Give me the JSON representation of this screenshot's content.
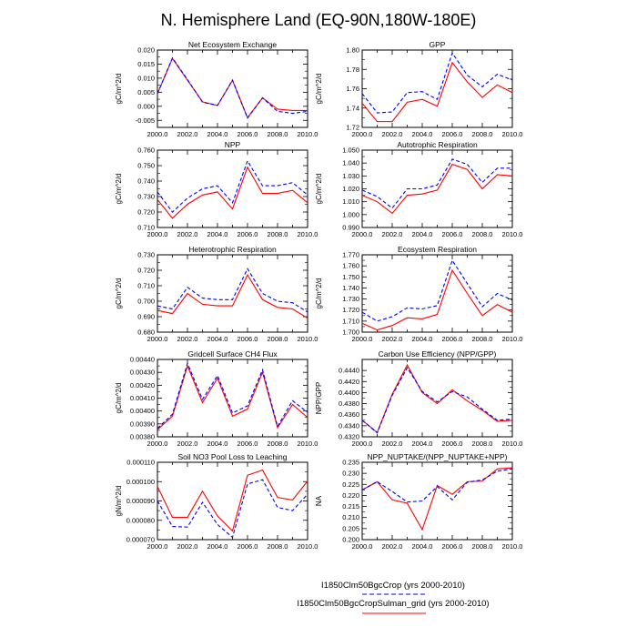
{
  "title": "N. Hemisphere Land (EQ-90N,180W-180E)",
  "legend": {
    "entries": [
      {
        "label": "I1850Clm50BgcCrop (yrs 2000-2010)",
        "color": "#0000ff",
        "dash": true
      },
      {
        "label": "I1850Clm50BgcCropSulman_grid (yrs 2000-2010)",
        "color": "#ff0000",
        "dash": false
      }
    ]
  },
  "chart_data": [
    {
      "type": "line",
      "title": "Net Ecosystem Exchange",
      "ylabel": "gC/m^2/d",
      "xlim": [
        2000,
        2010
      ],
      "ylim": [
        -0.0075,
        0.02
      ],
      "xticks": [
        "2000.0",
        "2002.0",
        "2004.0",
        "2006.0",
        "2008.0",
        "2010.0"
      ],
      "yticks": [
        "-0.005",
        "0.000",
        "0.005",
        "0.010",
        "0.015",
        "0.020"
      ],
      "x": [
        2000,
        2001,
        2002,
        2003,
        2004,
        2005,
        2006,
        2007,
        2008,
        2009,
        2010
      ],
      "series": [
        {
          "values": [
            0.0045,
            0.0172,
            0.0095,
            0.0015,
            0.0003,
            0.0093,
            -0.0042,
            0.003,
            -0.0018,
            -0.0025,
            -0.0018
          ]
        },
        {
          "values": [
            0.0045,
            0.017,
            0.0093,
            0.0016,
            0.0003,
            0.0092,
            -0.004,
            0.003,
            -0.001,
            -0.0015,
            -0.0015
          ]
        }
      ]
    },
    {
      "type": "line",
      "title": "GPP",
      "ylabel": "gC/m^2/d",
      "xlim": [
        2000,
        2010
      ],
      "ylim": [
        1.72,
        1.8
      ],
      "xticks": [
        "2000.0",
        "2002.0",
        "2004.0",
        "2006.0",
        "2008.0",
        "2010.0"
      ],
      "yticks": [
        "1.72",
        "1.74",
        "1.76",
        "1.78",
        "1.80"
      ],
      "x": [
        2000,
        2001,
        2002,
        2003,
        2004,
        2005,
        2006,
        2007,
        2008,
        2009,
        2010
      ],
      "series": [
        {
          "values": [
            1.755,
            1.735,
            1.736,
            1.756,
            1.757,
            1.749,
            1.797,
            1.774,
            1.762,
            1.775,
            1.769
          ]
        },
        {
          "values": [
            1.745,
            1.726,
            1.726,
            1.746,
            1.749,
            1.742,
            1.787,
            1.767,
            1.751,
            1.764,
            1.756
          ]
        }
      ]
    },
    {
      "type": "line",
      "title": "NPP",
      "ylabel": "gC/m^2/d",
      "xlim": [
        2000,
        2010
      ],
      "ylim": [
        0.71,
        0.76
      ],
      "xticks": [
        "2000.0",
        "2002.0",
        "2004.0",
        "2006.0",
        "2008.0",
        "2010.0"
      ],
      "yticks": [
        "0.710",
        "0.720",
        "0.730",
        "0.740",
        "0.750",
        "0.760"
      ],
      "x": [
        2000,
        2001,
        2002,
        2003,
        2004,
        2005,
        2006,
        2007,
        2008,
        2009,
        2010
      ],
      "series": [
        {
          "values": [
            0.733,
            0.72,
            0.729,
            0.735,
            0.737,
            0.726,
            0.753,
            0.737,
            0.737,
            0.739,
            0.731
          ]
        },
        {
          "values": [
            0.728,
            0.716,
            0.725,
            0.731,
            0.733,
            0.722,
            0.749,
            0.732,
            0.732,
            0.734,
            0.726
          ]
        }
      ]
    },
    {
      "type": "line",
      "title": "Autotrophic Respiration",
      "ylabel": "gC/m^2/d",
      "xlim": [
        2000,
        2010
      ],
      "ylim": [
        0.99,
        1.05
      ],
      "xticks": [
        "2000.0",
        "2002.0",
        "2004.0",
        "2006.0",
        "2008.0",
        "2010.0"
      ],
      "yticks": [
        "0.990",
        "1.000",
        "1.010",
        "1.020",
        "1.030",
        "1.040",
        "1.050"
      ],
      "x": [
        2000,
        2001,
        2002,
        2003,
        2004,
        2005,
        2006,
        2007,
        2008,
        2009,
        2010
      ],
      "series": [
        {
          "values": [
            1.019,
            1.014,
            1.005,
            1.02,
            1.02,
            1.023,
            1.043,
            1.039,
            1.025,
            1.036,
            1.036
          ]
        },
        {
          "values": [
            1.015,
            1.01,
            1.001,
            1.015,
            1.016,
            1.019,
            1.039,
            1.035,
            1.02,
            1.031,
            1.03
          ]
        }
      ]
    },
    {
      "type": "line",
      "title": "Heterotrophic Respiration",
      "ylabel": "gC/m^2/d",
      "xlim": [
        2000,
        2010
      ],
      "ylim": [
        0.68,
        0.73
      ],
      "xticks": [
        "2000.0",
        "2002.0",
        "2004.0",
        "2006.0",
        "2008.0",
        "2010.0"
      ],
      "yticks": [
        "0.680",
        "0.690",
        "0.700",
        "0.710",
        "0.720",
        "0.730"
      ],
      "x": [
        2000,
        2001,
        2002,
        2003,
        2004,
        2005,
        2006,
        2007,
        2008,
        2009,
        2010
      ],
      "series": [
        {
          "values": [
            0.697,
            0.695,
            0.709,
            0.702,
            0.701,
            0.701,
            0.721,
            0.705,
            0.7,
            0.699,
            0.693
          ]
        },
        {
          "values": [
            0.694,
            0.692,
            0.705,
            0.698,
            0.697,
            0.697,
            0.717,
            0.701,
            0.696,
            0.695,
            0.689
          ]
        }
      ]
    },
    {
      "type": "line",
      "title": "Ecosystem Respiration",
      "ylabel": "gC/m^2/d",
      "xlim": [
        2000,
        2010
      ],
      "ylim": [
        1.7,
        1.77
      ],
      "xticks": [
        "2000.0",
        "2002.0",
        "2004.0",
        "2006.0",
        "2008.0",
        "2010.0"
      ],
      "yticks": [
        "1.700",
        "1.710",
        "1.720",
        "1.730",
        "1.740",
        "1.750",
        "1.760",
        "1.770"
      ],
      "x": [
        2000,
        2001,
        2002,
        2003,
        2004,
        2005,
        2006,
        2007,
        2008,
        2009,
        2010
      ],
      "series": [
        {
          "values": [
            1.718,
            1.71,
            1.714,
            1.722,
            1.721,
            1.724,
            1.765,
            1.744,
            1.723,
            1.735,
            1.729
          ]
        },
        {
          "values": [
            1.708,
            1.702,
            1.706,
            1.713,
            1.712,
            1.716,
            1.756,
            1.735,
            1.715,
            1.725,
            1.718
          ]
        }
      ]
    },
    {
      "type": "line",
      "title": "Gridcell Surface CH4 Flux",
      "ylabel": "gC/m^2/d",
      "xlim": [
        2000,
        2010
      ],
      "ylim": [
        0.0038,
        0.0044
      ],
      "xticks": [
        "2000.0",
        "2002.0",
        "2004.0",
        "2006.0",
        "2008.0",
        "2010.0"
      ],
      "yticks": [
        "0.00380",
        "0.00390",
        "0.00400",
        "0.00410",
        "0.00420",
        "0.00430",
        "0.00440"
      ],
      "x": [
        2000,
        2001,
        2002,
        2003,
        2004,
        2005,
        2006,
        2007,
        2008,
        2009,
        2010
      ],
      "series": [
        {
          "values": [
            0.003865,
            0.003975,
            0.00437,
            0.00409,
            0.004275,
            0.003985,
            0.00404,
            0.00432,
            0.00388,
            0.00408,
            0.00399
          ]
        },
        {
          "values": [
            0.003855,
            0.00396,
            0.00435,
            0.004065,
            0.004255,
            0.00396,
            0.004015,
            0.0043,
            0.00387,
            0.00405,
            0.00395
          ]
        }
      ]
    },
    {
      "type": "line",
      "title": "Carbon Use Efficiency (NPP/GPP)",
      "ylabel": "NPP/GPP",
      "xlim": [
        2000,
        2010
      ],
      "ylim": [
        0.432,
        0.446
      ],
      "xticks": [
        "2000.0",
        "2002.0",
        "2004.0",
        "2006.0",
        "2008.0",
        "2010.0"
      ],
      "yticks": [
        "0.4320",
        "0.4340",
        "0.4360",
        "0.4380",
        "0.4400",
        "0.4420",
        "0.4440"
      ],
      "x": [
        2000,
        2001,
        2002,
        2003,
        2004,
        2005,
        2006,
        2007,
        2008,
        2009,
        2010
      ],
      "series": [
        {
          "values": [
            0.435,
            0.4327,
            0.4395,
            0.4445,
            0.4402,
            0.4383,
            0.4402,
            0.4392,
            0.437,
            0.435,
            0.4352
          ]
        },
        {
          "values": [
            0.435,
            0.4328,
            0.4397,
            0.445,
            0.44,
            0.438,
            0.4405,
            0.4385,
            0.4368,
            0.4348,
            0.435
          ]
        }
      ]
    },
    {
      "type": "line",
      "title": "Soil NO3 Pool Loss to Leaching",
      "ylabel": "gN/m^2/d",
      "xlim": [
        2000,
        2010
      ],
      "ylim": [
        7e-05,
        0.00011
      ],
      "xticks": [
        "2000.0",
        "2002.0",
        "2004.0",
        "2006.0",
        "2008.0",
        "2010.0"
      ],
      "yticks": [
        "0.000070",
        "0.000080",
        "0.000090",
        "0.000100",
        "0.000110"
      ],
      "x": [
        2000,
        2001,
        2002,
        2003,
        2004,
        2005,
        2006,
        2007,
        2008,
        2009,
        2010
      ],
      "series": [
        {
          "values": [
            9e-05,
            7.68e-05,
            7.65e-05,
            8.93e-05,
            7.78e-05,
            7.12e-05,
            9.88e-05,
            0.000101,
            8.67e-05,
            8.5e-05,
            9.35e-05
          ]
        },
        {
          "values": [
            9.75e-05,
            8.15e-05,
            8.15e-05,
            9.5e-05,
            8.22e-05,
            7.45e-05,
            0.0001033,
            0.000106,
            9.18e-05,
            9.05e-05,
            0.0001003
          ]
        }
      ]
    },
    {
      "type": "line",
      "title": "NPP_NUPTAKE/(NPP_NUPTAKE+NPP)",
      "ylabel": "NA",
      "xlim": [
        2000,
        2010
      ],
      "ylim": [
        0.2,
        0.235
      ],
      "xticks": [
        "2000.0",
        "2002.0",
        "2004.0",
        "2006.0",
        "2008.0",
        "2010.0"
      ],
      "yticks": [
        "0.200",
        "0.205",
        "0.210",
        "0.215",
        "0.220",
        "0.225",
        "0.230",
        "0.235"
      ],
      "x": [
        2000,
        2001,
        2002,
        2003,
        2004,
        2005,
        2006,
        2007,
        2008,
        2009,
        2010
      ],
      "series": [
        {
          "values": [
            0.2225,
            0.2262,
            0.2218,
            0.217,
            0.2175,
            0.224,
            0.218,
            0.226,
            0.227,
            0.231,
            0.232
          ]
        },
        {
          "values": [
            0.2225,
            0.2262,
            0.218,
            0.2165,
            0.2045,
            0.2245,
            0.2205,
            0.2262,
            0.2265,
            0.232,
            0.2325
          ]
        }
      ]
    }
  ]
}
